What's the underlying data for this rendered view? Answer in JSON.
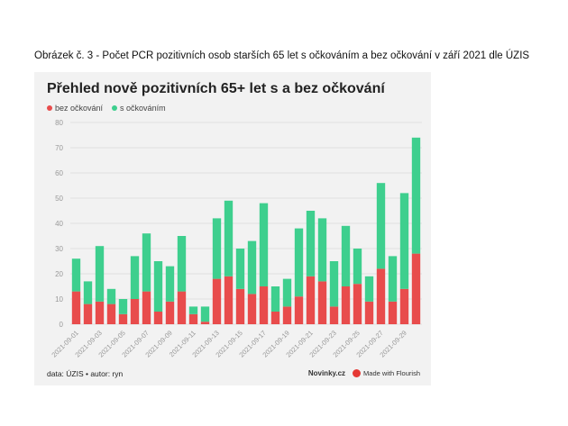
{
  "caption": "Obrázek č. 3 - Počet PCR pozitivních osob starších 65 let s očkováním a bez očkování v září 2021 dle ÚZIS",
  "colors": {
    "red": "#e84c4c",
    "green": "#3ecf8e",
    "grid": "#e0e0e0",
    "axis_text": "#999999"
  },
  "footer": {
    "source": "data: ÚZIS • autor: ryn",
    "brand": "Novinky.cz",
    "made_with": "Made with Flourish"
  },
  "chart_data": {
    "type": "bar",
    "stacked": true,
    "title": "Přehled nově pozitivních 65+ let s a bez očkování",
    "legend_position": "top-left",
    "grid": true,
    "ylim": [
      0,
      80
    ],
    "yticks": [
      0,
      10,
      20,
      30,
      40,
      50,
      60,
      70,
      80
    ],
    "tick_labels_x": [
      "2021-09-01",
      "2021-09-03",
      "2021-09-05",
      "2021-09-07",
      "2021-09-09",
      "2021-09-11",
      "2021-09-13",
      "2021-09-15",
      "2021-09-17",
      "2021-09-19",
      "2021-09-21",
      "2021-09-23",
      "2021-09-25",
      "2021-09-27",
      "2021-09-29"
    ],
    "categories": [
      "2021-09-01",
      "2021-09-02",
      "2021-09-03",
      "2021-09-04",
      "2021-09-05",
      "2021-09-06",
      "2021-09-07",
      "2021-09-08",
      "2021-09-09",
      "2021-09-10",
      "2021-09-11",
      "2021-09-12",
      "2021-09-13",
      "2021-09-14",
      "2021-09-15",
      "2021-09-16",
      "2021-09-17",
      "2021-09-18",
      "2021-09-19",
      "2021-09-20",
      "2021-09-21",
      "2021-09-22",
      "2021-09-23",
      "2021-09-24",
      "2021-09-25",
      "2021-09-26",
      "2021-09-27",
      "2021-09-28",
      "2021-09-29",
      "2021-09-30"
    ],
    "series": [
      {
        "name": "bez očkování",
        "color": "#e84c4c",
        "values": [
          13,
          8,
          9,
          8,
          4,
          10,
          13,
          5,
          9,
          13,
          4,
          1,
          18,
          19,
          14,
          12,
          15,
          5,
          7,
          11,
          19,
          17,
          7,
          15,
          16,
          9,
          22,
          9,
          14,
          28
        ]
      },
      {
        "name": "s očkováním",
        "color": "#3ecf8e",
        "values": [
          13,
          9,
          22,
          6,
          6,
          17,
          23,
          20,
          14,
          22,
          3,
          6,
          24,
          30,
          16,
          21,
          33,
          10,
          11,
          27,
          26,
          25,
          18,
          24,
          14,
          10,
          34,
          18,
          38,
          46
        ]
      }
    ]
  }
}
